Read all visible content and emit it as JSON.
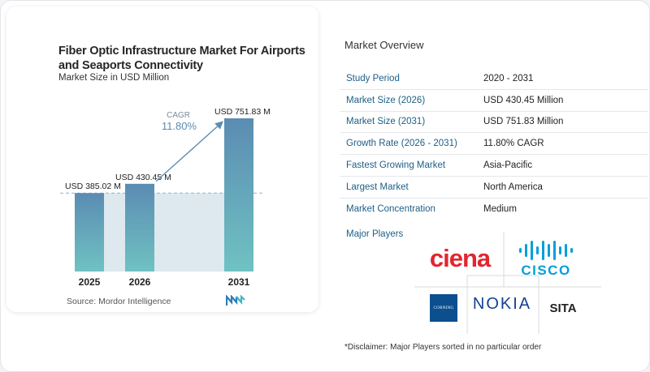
{
  "chart_data": {
    "type": "bar",
    "title": "Fiber Optic Infrastructure Market For Airports and Seaports Connectivity",
    "subtitle": "Market Size in USD Million",
    "categories": [
      "2025",
      "2026",
      "2031"
    ],
    "values": [
      385.02,
      430.45,
      751.83
    ],
    "value_labels": [
      "USD 385.02 M",
      "USD 430.45 M",
      "USD 751.83 M"
    ],
    "cagr_label": "CAGR",
    "cagr_value": "11.80%",
    "colors": {
      "bar_top": "#5b8cb3",
      "bar_bottom": "#6fc2c2",
      "baseline_fill": "#dde8ef",
      "cagr_text": "#5b8cb3",
      "dashed": "#8fb3c9"
    }
  },
  "source": "Source:  Mordor Intelligence",
  "overview": {
    "title": "Market Overview",
    "rows": [
      {
        "key": "Study Period",
        "value": "2020 - 2031"
      },
      {
        "key": "Market Size (2026)",
        "value": "USD 430.45 Million"
      },
      {
        "key": "Market Size (2031)",
        "value": "USD 751.83 Million"
      },
      {
        "key": "Growth Rate (2026 - 2031)",
        "value": "11.80% CAGR"
      },
      {
        "key": "Fastest Growing Market",
        "value": "Asia-Pacific"
      },
      {
        "key": "Largest Market",
        "value": "North America"
      },
      {
        "key": "Market Concentration",
        "value": "Medium"
      }
    ]
  },
  "major_players": {
    "title": "Major Players",
    "logos": {
      "ciena": "ciena",
      "cisco": "CISCO",
      "corning": "CORNING",
      "nokia": "NOKIA",
      "sita": "SITA"
    },
    "brand_colors": {
      "ciena": "#e0262f",
      "cisco": "#049fd9",
      "corning": "#0b4f8f",
      "nokia": "#124191",
      "sita": "#222222"
    }
  },
  "disclaimer": "*Disclaimer: Major Players sorted in no particular order"
}
